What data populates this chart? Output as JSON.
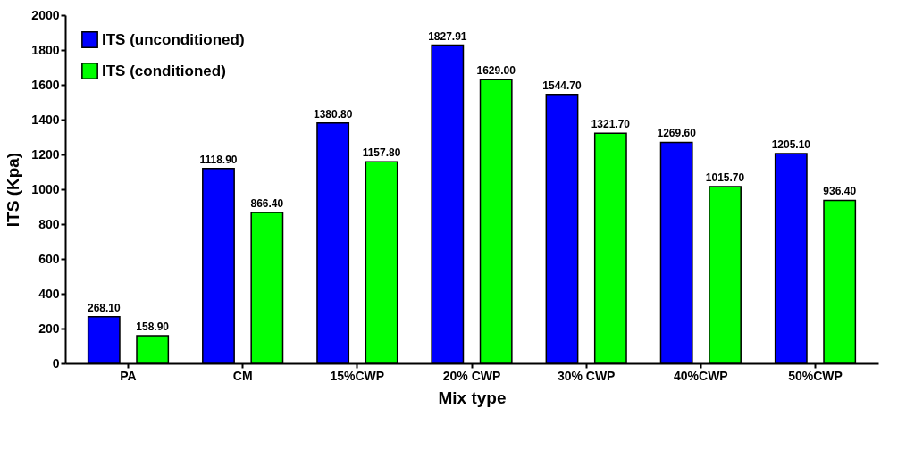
{
  "chart_data": {
    "type": "bar",
    "xlabel": "Mix type",
    "ylabel": "ITS (Kpa)",
    "categories": [
      "PA",
      "CM",
      "15%CWP",
      "20% CWP",
      "30% CWP",
      "40%CWP",
      "50%CWP"
    ],
    "series": [
      {
        "name": "ITS (unconditioned)",
        "color": "#0000ff",
        "values": [
          268.1,
          1118.9,
          1380.8,
          1827.91,
          1544.7,
          1269.6,
          1205.1
        ],
        "value_labels": [
          "268.10",
          "1118.90",
          "1380.80",
          "1827.91",
          "1544.70",
          "1269.60",
          "1205.10"
        ]
      },
      {
        "name": "ITS (conditioned)",
        "color": "#00ff00",
        "values": [
          158.9,
          866.4,
          1157.8,
          1629.0,
          1321.7,
          1015.7,
          936.4
        ],
        "value_labels": [
          "158.90",
          "866.40",
          "1157.80",
          "1629.00",
          "1321.70",
          "1015.70",
          "936.40"
        ]
      }
    ],
    "ylim": [
      0,
      2000
    ],
    "yticks": [
      0,
      200,
      400,
      600,
      800,
      1000,
      1200,
      1400,
      1600,
      1800,
      2000
    ],
    "grid": false,
    "legend": "top left"
  }
}
